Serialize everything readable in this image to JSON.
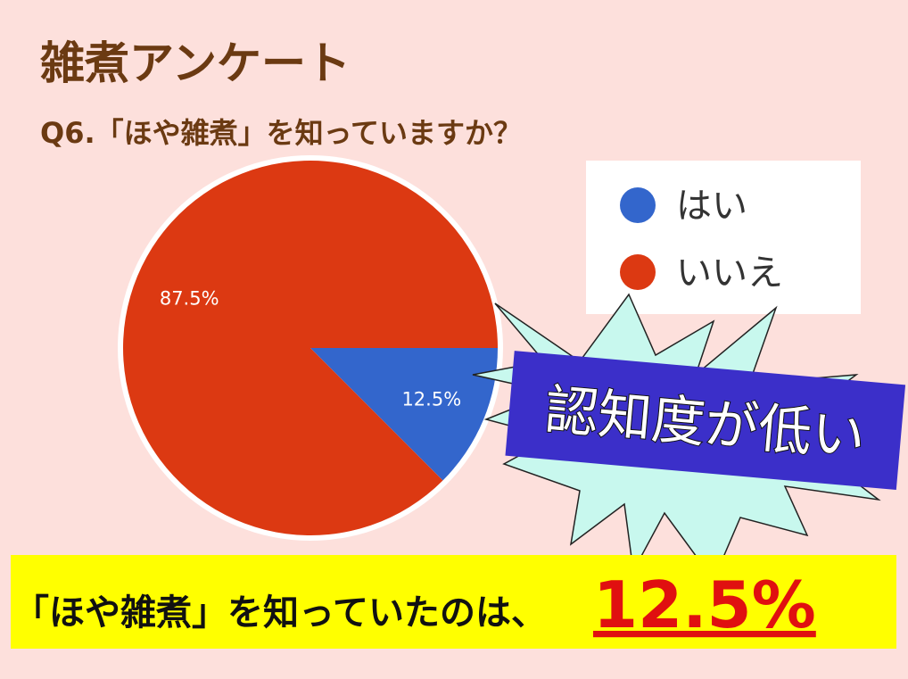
{
  "chart_data": {
    "type": "pie",
    "title": "雑煮アンケート",
    "subtitle": "Q6.「ほや雑煮」を知っていますか？",
    "categories": [
      "はい",
      "いいえ"
    ],
    "values": [
      12.5,
      87.5
    ],
    "value_labels": [
      "12.5%",
      "87.5%"
    ],
    "colors": [
      "#3366cc",
      "#dc3912"
    ],
    "callout": "認知度が低い",
    "summary": "「ほや雑煮」を知っていたのは、",
    "summary_highlight": "12.5%"
  }
}
